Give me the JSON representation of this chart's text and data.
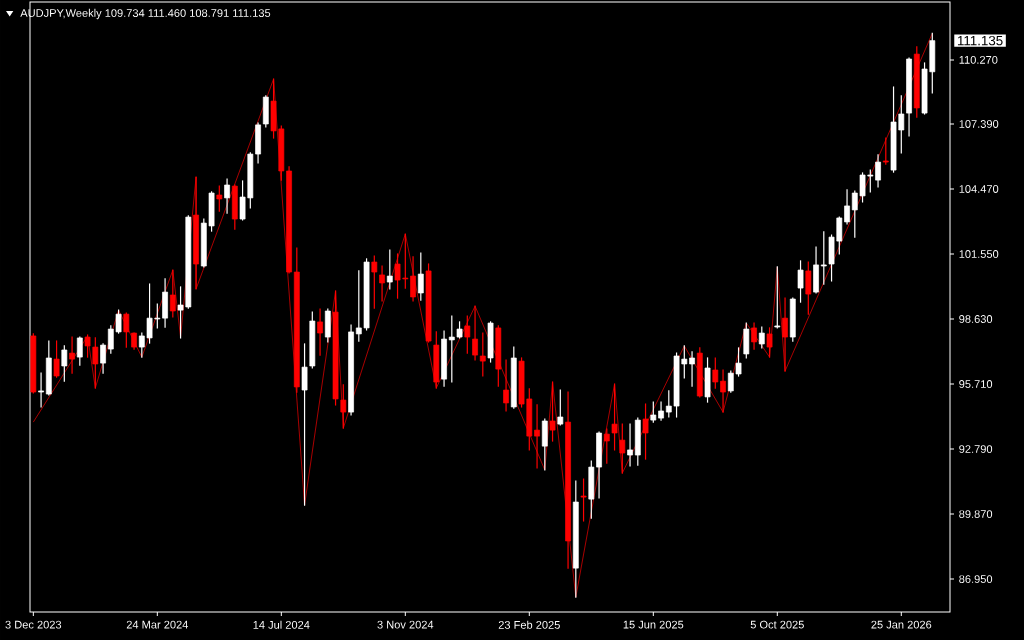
{
  "chart_data": {
    "type": "candlestick",
    "title": "AUDJPY,Weekly 109.734 111.460 108.791 111.135",
    "x": [
      "2023-12-03",
      "2023-12-10",
      "2023-12-17",
      "2023-12-24",
      "2023-12-31",
      "2024-01-07",
      "2024-01-14",
      "2024-01-21",
      "2024-01-28",
      "2024-02-04",
      "2024-02-11",
      "2024-02-18",
      "2024-02-25",
      "2024-03-03",
      "2024-03-10",
      "2024-03-17",
      "2024-03-24",
      "2024-03-31",
      "2024-04-07",
      "2024-04-14",
      "2024-04-21",
      "2024-04-28",
      "2024-05-05",
      "2024-05-12",
      "2024-05-19",
      "2024-05-26",
      "2024-06-02",
      "2024-06-09",
      "2024-06-16",
      "2024-06-23",
      "2024-06-30",
      "2024-07-07",
      "2024-07-14",
      "2024-07-21",
      "2024-07-28",
      "2024-08-04",
      "2024-08-11",
      "2024-08-18",
      "2024-08-25",
      "2024-09-01",
      "2024-09-08",
      "2024-09-15",
      "2024-09-22",
      "2024-09-29",
      "2024-10-06",
      "2024-10-13",
      "2024-10-20",
      "2024-10-27",
      "2024-11-03",
      "2024-11-10",
      "2024-11-17",
      "2024-11-24",
      "2024-12-01",
      "2024-12-08",
      "2024-12-15",
      "2024-12-22",
      "2024-12-29",
      "2025-01-05",
      "2025-01-12",
      "2025-01-19",
      "2025-01-26",
      "2025-02-02",
      "2025-02-09",
      "2025-02-16",
      "2025-02-23",
      "2025-03-02",
      "2025-03-09",
      "2025-03-16",
      "2025-03-23",
      "2025-03-30",
      "2025-04-06",
      "2025-04-13",
      "2025-04-20",
      "2025-04-27",
      "2025-05-04",
      "2025-05-11",
      "2025-05-18",
      "2025-05-25",
      "2025-06-01",
      "2025-06-08",
      "2025-06-15",
      "2025-06-22",
      "2025-06-29",
      "2025-07-06",
      "2025-07-13",
      "2025-07-20",
      "2025-07-27",
      "2025-08-03",
      "2025-08-10",
      "2025-08-17",
      "2025-08-24",
      "2025-08-31",
      "2025-09-07",
      "2025-09-14",
      "2025-09-21",
      "2025-09-28",
      "2025-10-05",
      "2025-10-12",
      "2025-10-19",
      "2025-10-26",
      "2025-11-02",
      "2025-11-09",
      "2025-11-16",
      "2025-11-23",
      "2025-11-30",
      "2025-12-07",
      "2025-12-14",
      "2025-12-21",
      "2025-12-28",
      "2026-01-04",
      "2026-01-11",
      "2026-01-18",
      "2026-01-25",
      "2026-02-01",
      "2026-02-08",
      "2026-02-15",
      "2026-02-22"
    ],
    "ohlc": [
      [
        97.87,
        97.96,
        95.31,
        95.35
      ],
      [
        95.35,
        96.2,
        94.68,
        95.4
      ],
      [
        95.26,
        97.64,
        95.22,
        96.88
      ],
      [
        96.83,
        97.64,
        96.02,
        96.07
      ],
      [
        96.52,
        97.42,
        95.84,
        97.24
      ],
      [
        97.1,
        97.82,
        96.2,
        96.83
      ],
      [
        96.92,
        97.82,
        96.56,
        97.78
      ],
      [
        97.82,
        97.91,
        96.92,
        97.42
      ],
      [
        97.37,
        97.78,
        95.53,
        96.61
      ],
      [
        96.65,
        97.51,
        96.2,
        97.46
      ],
      [
        97.28,
        98.32,
        97.1,
        98.18
      ],
      [
        98.05,
        99.03,
        98.0,
        98.85
      ],
      [
        98.85,
        98.9,
        97.37,
        98.05
      ],
      [
        98.0,
        98.0,
        97.28,
        97.37
      ],
      [
        97.37,
        98.0,
        96.92,
        97.87
      ],
      [
        97.78,
        100.2,
        97.55,
        98.67
      ],
      [
        98.63,
        99.3,
        98.23,
        98.67
      ],
      [
        98.67,
        100.43,
        98.27,
        99.84
      ],
      [
        99.71,
        100.83,
        98.72,
        98.99
      ],
      [
        99.03,
        100.07,
        97.78,
        99.26
      ],
      [
        99.17,
        103.26,
        99.12,
        103.21
      ],
      [
        103.3,
        105.01,
        99.98,
        101.1
      ],
      [
        101.01,
        103.12,
        100.97,
        102.94
      ],
      [
        102.81,
        104.34,
        102.58,
        104.29
      ],
      [
        104.2,
        104.6,
        103.48,
        104.02
      ],
      [
        104.07,
        104.92,
        103.39,
        104.65
      ],
      [
        104.6,
        104.65,
        102.67,
        103.12
      ],
      [
        103.12,
        104.83,
        103.08,
        104.11
      ],
      [
        104.07,
        106.09,
        103.62,
        106.04
      ],
      [
        106.04,
        107.43,
        105.64,
        107.35
      ],
      [
        107.39,
        108.65,
        107.26,
        108.6
      ],
      [
        108.42,
        109.41,
        106.76,
        107.08
      ],
      [
        107.17,
        107.3,
        104.87,
        105.28
      ],
      [
        105.28,
        105.46,
        100.7,
        100.74
      ],
      [
        100.74,
        101.82,
        95.35,
        95.58
      ],
      [
        95.44,
        97.51,
        90.27,
        96.47
      ],
      [
        96.52,
        98.94,
        96.43,
        98.54
      ],
      [
        98.5,
        99.08,
        97.01,
        98.0
      ],
      [
        97.82,
        99.08,
        97.6,
        98.99
      ],
      [
        98.94,
        99.89,
        94.77,
        95.04
      ],
      [
        94.99,
        95.67,
        93.73,
        94.45
      ],
      [
        94.45,
        98.36,
        94.32,
        98.05
      ],
      [
        97.96,
        100.79,
        97.64,
        98.23
      ],
      [
        98.23,
        101.33,
        98.14,
        101.19
      ],
      [
        101.19,
        101.46,
        99.12,
        100.74
      ],
      [
        100.61,
        101.01,
        99.44,
        100.25
      ],
      [
        100.29,
        101.73,
        99.98,
        100.56
      ],
      [
        101.1,
        101.55,
        99.57,
        100.38
      ],
      [
        100.47,
        102.45,
        100.02,
        100.43
      ],
      [
        100.56,
        101.42,
        99.44,
        99.62
      ],
      [
        99.8,
        101.59,
        99.48,
        100.65
      ],
      [
        100.79,
        101.1,
        97.6,
        97.64
      ],
      [
        97.46,
        98.05,
        95.53,
        95.8
      ],
      [
        95.93,
        98.09,
        95.62,
        97.73
      ],
      [
        97.69,
        98.76,
        95.8,
        97.82
      ],
      [
        97.82,
        98.5,
        97.78,
        98.18
      ],
      [
        98.32,
        98.76,
        97.1,
        97.82
      ],
      [
        97.73,
        99.21,
        96.79,
        97.01
      ],
      [
        96.97,
        98.0,
        96.07,
        96.74
      ],
      [
        96.88,
        98.5,
        96.7,
        98.45
      ],
      [
        98.23,
        98.32,
        95.62,
        96.38
      ],
      [
        95.44,
        96.79,
        94.5,
        94.86
      ],
      [
        94.68,
        97.37,
        94.63,
        96.88
      ],
      [
        96.74,
        96.88,
        94.68,
        94.81
      ],
      [
        95.04,
        95.49,
        92.75,
        93.37
      ],
      [
        93.64,
        94.77,
        91.94,
        93.37
      ],
      [
        92.92,
        94.14,
        91.85,
        94.05
      ],
      [
        94.05,
        95.8,
        93.15,
        93.64
      ],
      [
        93.91,
        95.44,
        93.87,
        94.23
      ],
      [
        94.0,
        95.35,
        87.44,
        88.66
      ],
      [
        87.44,
        91.35,
        86.14,
        90.41
      ],
      [
        90.68,
        91.44,
        89.56,
        90.63
      ],
      [
        90.54,
        92.25,
        89.69,
        91.98
      ],
      [
        91.98,
        93.55,
        90.59,
        93.51
      ],
      [
        93.46,
        93.69,
        92.16,
        93.15
      ],
      [
        93.91,
        95.71,
        92.75,
        93.51
      ],
      [
        93.19,
        93.91,
        91.71,
        92.61
      ],
      [
        92.52,
        93.91,
        92.03,
        92.75
      ],
      [
        92.52,
        94.18,
        92.07,
        94.09
      ],
      [
        94.14,
        94.81,
        92.34,
        93.51
      ],
      [
        94.09,
        94.9,
        94.0,
        94.32
      ],
      [
        94.18,
        94.9,
        94.09,
        94.5
      ],
      [
        94.45,
        95.4,
        94.23,
        94.72
      ],
      [
        94.72,
        97.1,
        94.23,
        96.97
      ],
      [
        96.61,
        97.42,
        95.98,
        96.83
      ],
      [
        96.61,
        97.15,
        95.62,
        96.88
      ],
      [
        97.1,
        97.33,
        95.13,
        95.17
      ],
      [
        95.13,
        96.88,
        94.9,
        96.43
      ],
      [
        96.34,
        96.88,
        95.53,
        95.8
      ],
      [
        95.84,
        96.34,
        94.45,
        95.35
      ],
      [
        95.4,
        96.29,
        95.35,
        96.2
      ],
      [
        96.16,
        97.33,
        96.07,
        96.65
      ],
      [
        97.06,
        98.45,
        96.88,
        98.18
      ],
      [
        98.23,
        98.45,
        97.28,
        97.6
      ],
      [
        97.51,
        98.27,
        97.33,
        98.0
      ],
      [
        97.96,
        98.23,
        96.92,
        97.37
      ],
      [
        98.27,
        100.97,
        98.23,
        98.32
      ],
      [
        98.67,
        99.57,
        96.29,
        97.82
      ],
      [
        97.82,
        99.57,
        97.64,
        99.53
      ],
      [
        100.02,
        101.24,
        99.39,
        100.83
      ],
      [
        100.79,
        101.19,
        98.85,
        99.75
      ],
      [
        99.84,
        101.86,
        99.8,
        101.06
      ],
      [
        101.01,
        102.54,
        100.2,
        101.06
      ],
      [
        101.1,
        102.4,
        100.34,
        102.31
      ],
      [
        102.13,
        103.21,
        101.55,
        103.17
      ],
      [
        102.99,
        104.43,
        102.9,
        103.71
      ],
      [
        103.53,
        104.38,
        102.31,
        104.29
      ],
      [
        104.16,
        105.19,
        103.89,
        105.1
      ],
      [
        105.05,
        105.32,
        104.34,
        105.1
      ],
      [
        104.87,
        106.0,
        104.56,
        105.68
      ],
      [
        105.73,
        106.76,
        105.59,
        105.68
      ],
      [
        105.32,
        109.05,
        105.23,
        107.48
      ],
      [
        107.12,
        108.65,
        106.09,
        107.84
      ],
      [
        107.88,
        110.35,
        106.85,
        110.31
      ],
      [
        110.53,
        110.85,
        107.7,
        108.11
      ],
      [
        107.88,
        110.13,
        107.84,
        109.86
      ],
      [
        109.734,
        111.46,
        108.791,
        111.135
      ]
    ],
    "colors": [
      "#ff0000",
      "#ffffff",
      "#ffffff",
      "#ff0000",
      "#ffffff",
      "#ff0000",
      "#ffffff",
      "#ff0000",
      "#ff0000",
      "#ffffff",
      "#ffffff",
      "#ffffff",
      "#ff0000",
      "#ff0000",
      "#ffffff",
      "#ffffff",
      "#ffffff",
      "#ffffff",
      "#ff0000",
      "#ffffff",
      "#ffffff",
      "#ff0000",
      "#ffffff",
      "#ffffff",
      "#ff0000",
      "#ffffff",
      "#ff0000",
      "#ffffff",
      "#ffffff",
      "#ffffff",
      "#ffffff",
      "#ff0000",
      "#ff0000",
      "#ff0000",
      "#ff0000",
      "#ffffff",
      "#ffffff",
      "#ff0000",
      "#ffffff",
      "#ff0000",
      "#ff0000",
      "#ffffff",
      "#ffffff",
      "#ffffff",
      "#ff0000",
      "#ff0000",
      "#ffffff",
      "#ff0000",
      "#ff0000",
      "#ff0000",
      "#ffffff",
      "#ff0000",
      "#ff0000",
      "#ffffff",
      "#ffffff",
      "#ffffff",
      "#ff0000",
      "#ff0000",
      "#ff0000",
      "#ffffff",
      "#ff0000",
      "#ff0000",
      "#ffffff",
      "#ff0000",
      "#ff0000",
      "#ff0000",
      "#ffffff",
      "#ff0000",
      "#ffffff",
      "#ff0000",
      "#ffffff",
      "#ff0000",
      "#ffffff",
      "#ffffff",
      "#ff0000",
      "#ff0000",
      "#ff0000",
      "#ffffff",
      "#ffffff",
      "#ff0000",
      "#ffffff",
      "#ffffff",
      "#ffffff",
      "#ffffff",
      "#ffffff",
      "#ffffff",
      "#ff0000",
      "#ffffff",
      "#ff0000",
      "#ff0000",
      "#ffffff",
      "#ffffff",
      "#ffffff",
      "#ff0000",
      "#ffffff",
      "#ff0000",
      "#ffffff",
      "#ff0000",
      "#ffffff",
      "#ffffff",
      "#ff0000",
      "#ffffff",
      "#ffffff",
      "#ffffff",
      "#ffffff",
      "#ffffff",
      "#ffffff",
      "#ffffff",
      "#ffffff",
      "#ffffff",
      "#ff0000",
      "#ffffff",
      "#ffffff",
      "#ffffff",
      "#ff0000",
      "#ffffff",
      "#ffffff"
    ],
    "series": [
      {
        "type": "line",
        "color": "#ff0000",
        "x": [
          "2023-12-03",
          "2024-01-21",
          "2024-01-28",
          "2024-02-18",
          "2024-03-10",
          "2024-04-07",
          "2024-04-14",
          "2024-04-28",
          "2024-04-28",
          "2024-07-07",
          "2024-08-04",
          "2024-09-01",
          "2024-09-08",
          "2024-11-03",
          "2024-12-01",
          "2025-01-05",
          "2025-03-09",
          "2025-03-16",
          "2025-04-06",
          "2025-05-11",
          "2025-05-18",
          "2025-07-13",
          "2025-08-17",
          "2025-09-07",
          "2025-09-28",
          "2025-10-05",
          "2025-10-12",
          "2026-02-22"
        ],
        "values": [
          94.0,
          97.87,
          95.53,
          99.03,
          96.92,
          100.83,
          97.82,
          105.01,
          99.98,
          109.41,
          90.27,
          99.89,
          93.73,
          102.45,
          95.53,
          99.21,
          91.85,
          95.8,
          86.14,
          95.71,
          91.71,
          97.42,
          94.45,
          98.45,
          96.92,
          100.97,
          96.29,
          111.46
        ]
      }
    ],
    "xlim": [
      "2023-11-30",
      "2026-03-10"
    ],
    "xticks": [
      {
        "value": "2023-12-03",
        "label": "3 Dec 2023"
      },
      {
        "value": "2024-03-24",
        "label": "24 Mar 2024"
      },
      {
        "value": "2024-07-14",
        "label": "14 Jul 2024"
      },
      {
        "value": "2024-11-03",
        "label": "3 Nov 2024"
      },
      {
        "value": "2025-02-23",
        "label": "23 Feb 2025"
      },
      {
        "value": "2025-06-15",
        "label": "15 Jun 2025"
      },
      {
        "value": "2025-10-05",
        "label": "5 Oct 2025"
      },
      {
        "value": "2026-01-25",
        "label": "25 Jan 2026"
      }
    ],
    "ylim": [
      85.47,
      112.87
    ],
    "yticks": [
      {
        "value": 86.95,
        "label": "86.950"
      },
      {
        "value": 89.87,
        "label": "89.870"
      },
      {
        "value": 92.79,
        "label": "92.790"
      },
      {
        "value": 95.71,
        "label": "95.710"
      },
      {
        "value": 98.63,
        "label": "98.630"
      },
      {
        "value": 101.55,
        "label": "101.550"
      },
      {
        "value": 104.47,
        "label": "104.470"
      },
      {
        "value": 107.39,
        "label": "107.390"
      },
      {
        "value": 110.27,
        "label": "110.270"
      }
    ],
    "annotations": [
      "111.135"
    ]
  }
}
